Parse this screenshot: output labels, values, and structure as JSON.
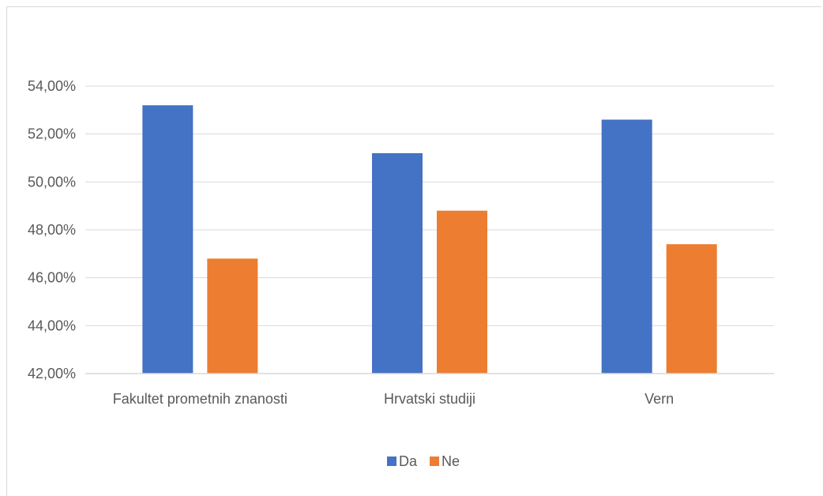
{
  "chart_data": {
    "type": "bar",
    "title": "",
    "xlabel": "",
    "ylabel": "",
    "categories": [
      "Fakultet prometnih znanosti",
      "Hrvatski studiji",
      "Vern"
    ],
    "series": [
      {
        "name": "Da",
        "color": "#4472C4",
        "values": [
          53.2,
          51.2,
          52.6
        ]
      },
      {
        "name": "Ne",
        "color": "#ED7D31",
        "values": [
          46.8,
          48.8,
          47.4
        ]
      }
    ],
    "ylim": [
      42,
      54
    ],
    "yticks": [
      42,
      44,
      46,
      48,
      50,
      52,
      54
    ],
    "ytick_labels": [
      "42,00%",
      "44,00%",
      "46,00%",
      "48,00%",
      "50,00%",
      "52,00%",
      "54,00%"
    ],
    "grid": true,
    "legend_position": "bottom"
  }
}
